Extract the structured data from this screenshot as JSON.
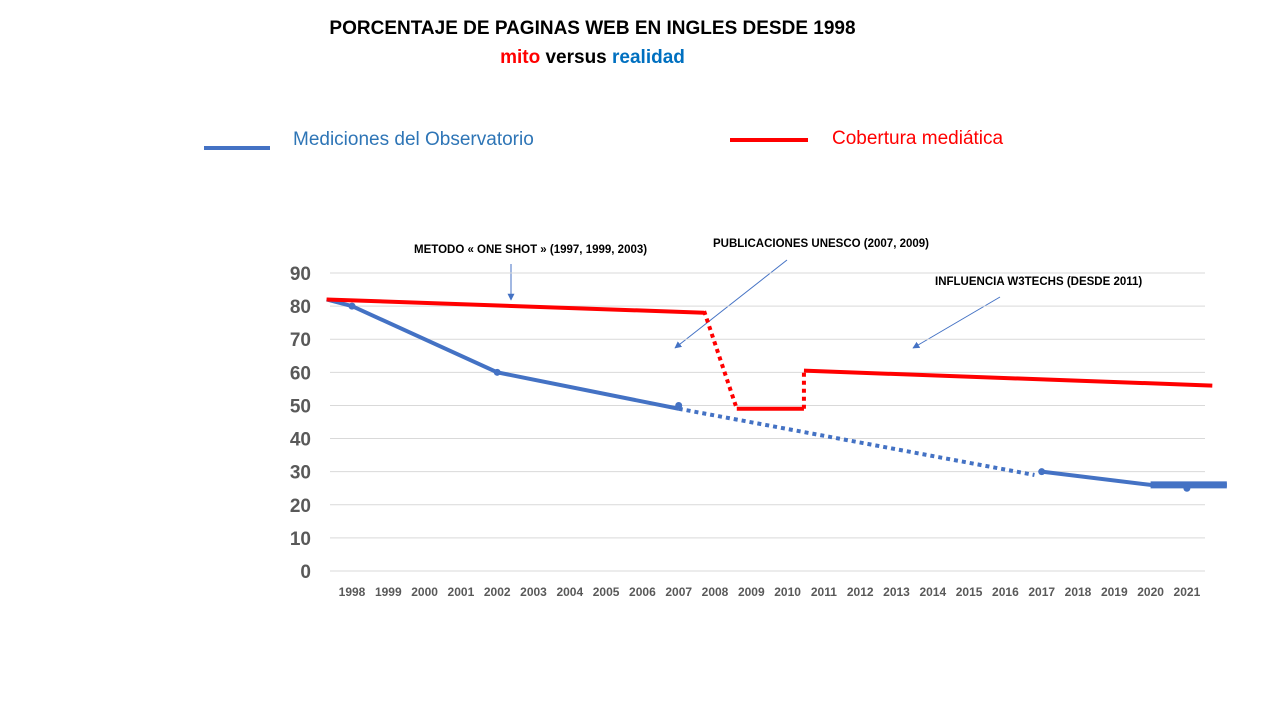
{
  "chart_data": {
    "type": "line",
    "title": "PORCENTAJE DE PAGINAS WEB EN INGLES DESDE 1998",
    "subtitle": {
      "part1": "mito",
      "part2": "versus",
      "part3": "realidad"
    },
    "categories": [
      "1998",
      "1999",
      "2000",
      "2001",
      "2002",
      "2003",
      "2004",
      "2005",
      "2006",
      "2007",
      "2008",
      "2009",
      "2010",
      "2011",
      "2012",
      "2013",
      "2014",
      "2015",
      "2016",
      "2017",
      "2018",
      "2019",
      "2020",
      "2021"
    ],
    "ylim": [
      0,
      90
    ],
    "yticks": [
      "0",
      "10",
      "20",
      "30",
      "40",
      "50",
      "60",
      "70",
      "80",
      "90"
    ],
    "grid": true,
    "legend_position": "top",
    "series": [
      {
        "name": "Mediciones del Observatorio",
        "color": "#4472C4",
        "segments": [
          {
            "style": "solid",
            "points": [
              [
                1997.3,
                82
              ],
              [
                1998,
                80
              ],
              [
                2002,
                60
              ],
              [
                2007,
                49
              ]
            ]
          },
          {
            "style": "dotted",
            "points": [
              [
                2007,
                49
              ],
              [
                2016.8,
                29
              ]
            ]
          },
          {
            "style": "solid",
            "points": [
              [
                2017,
                30
              ],
              [
                2020,
                26
              ],
              [
                2022.1,
                26
              ]
            ]
          }
        ],
        "markers": [
          [
            1998,
            80
          ],
          [
            2002,
            60
          ],
          [
            2007,
            50
          ],
          [
            2017,
            30
          ],
          [
            2021,
            25
          ]
        ]
      },
      {
        "name": "Cobertura mediática",
        "color": "#FF0000",
        "segments": [
          {
            "style": "solid",
            "points": [
              [
                1997.3,
                82
              ],
              [
                2007.7,
                78
              ]
            ]
          },
          {
            "style": "dotted",
            "points": [
              [
                2007.7,
                78.5
              ],
              [
                2008.6,
                49
              ]
            ]
          },
          {
            "style": "solid",
            "points": [
              [
                2008.6,
                49
              ],
              [
                2010.45,
                49
              ]
            ]
          },
          {
            "style": "dotted",
            "points": [
              [
                2010.45,
                49
              ],
              [
                2010.45,
                60.5
              ]
            ]
          },
          {
            "style": "solid",
            "points": [
              [
                2010.45,
                60.5
              ],
              [
                2021.7,
                56
              ]
            ]
          }
        ]
      }
    ],
    "annotations": [
      {
        "text": "METODO « ONE SHOT »  (1997, 1999, 2003)"
      },
      {
        "text": "PUBLICACIONES UNESCO (2007, 2009)"
      },
      {
        "text": "INFLUENCIA W3TECHS (DESDE 2011)"
      }
    ]
  }
}
